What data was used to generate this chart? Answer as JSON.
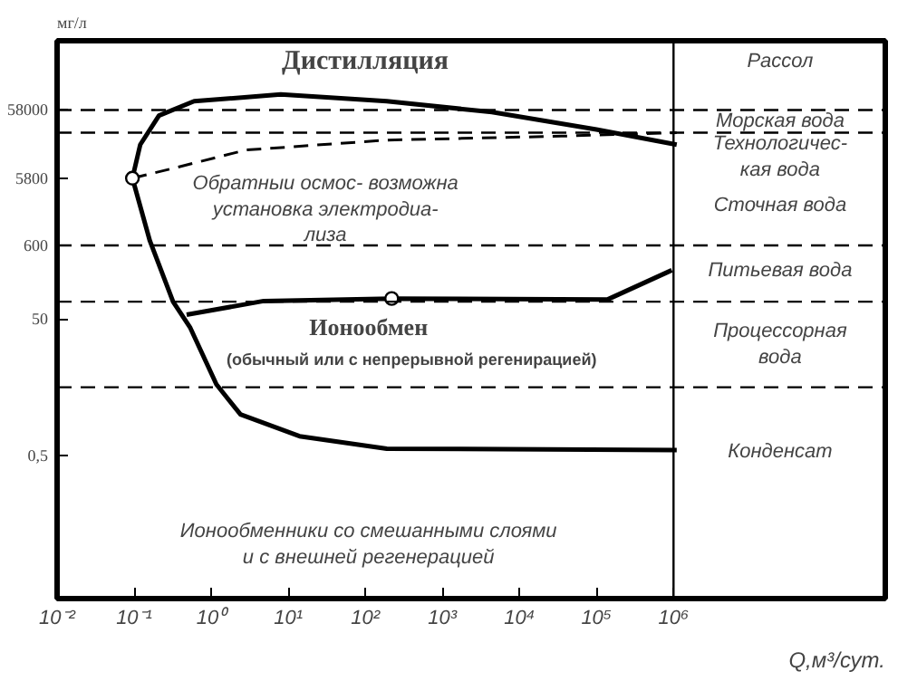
{
  "chart_data": {
    "type": "line",
    "ylabel": "мг/л",
    "xlabel": "Q,м³/сут.",
    "log": "xy",
    "grid": false,
    "xlim": [
      0.01,
      560000000
    ],
    "ylim": [
      0.004,
      600000
    ],
    "xticks": [
      {
        "value": 0.01,
        "label": "10⁻²"
      },
      {
        "value": 0.1,
        "label": "10⁻¹"
      },
      {
        "value": 1,
        "label": "10⁰"
      },
      {
        "value": 10,
        "label": "10¹"
      },
      {
        "value": 100,
        "label": "10²"
      },
      {
        "value": 1000,
        "label": "10³"
      },
      {
        "value": 10000,
        "label": "10⁴"
      },
      {
        "value": 100000,
        "label": "10⁵"
      },
      {
        "value": 1000000,
        "label": "10⁶"
      }
    ],
    "yticks": [
      58000,
      5800,
      600,
      50,
      {
        "value": 0.5,
        "label": "0,5"
      }
    ],
    "series": [
      {
        "color": "#000000",
        "line_style": "solid",
        "x": [
          0.095,
          0.12,
          0.21,
          0.6,
          8,
          190,
          4400,
          100000,
          1100000
        ],
        "values": [
          5800,
          18000,
          48000,
          78000,
          98000,
          78000,
          54000,
          30000,
          18000
        ]
      },
      {
        "color": "#000000",
        "line_style": "dashed",
        "x": [
          0.095,
          0.35,
          2.8,
          190,
          35000,
          1100000
        ],
        "values": [
          5800,
          8300,
          15000,
          21000,
          24000,
          27000
        ]
      },
      {
        "color": "#000000",
        "line_style": "solid",
        "x": [
          0.095,
          0.16,
          0.32,
          0.53,
          1.17,
          2.4,
          14,
          190,
          1100000
        ],
        "values": [
          5800,
          700,
          90,
          38,
          5.5,
          2.0,
          0.96,
          0.63,
          0.6
        ]
      },
      {
        "color": "#000000",
        "line_style": "solid",
        "x": [
          0.48,
          4.8,
          220,
          140000,
          950000
        ],
        "values": [
          58,
          92,
          100,
          97,
          260
        ]
      },
      {
        "type": "scatter",
        "color": "#000000",
        "marker": "circle",
        "x": [
          0.095,
          220
        ],
        "values": [
          5800,
          100
        ]
      }
    ],
    "ref_lines": [
      {
        "axis": "x",
        "value": 1000000,
        "line_style": "solid"
      },
      {
        "axis": "y",
        "value": 58000,
        "line_style": "dashed"
      },
      {
        "axis": "y",
        "value": 27000,
        "line_style": "dashed"
      },
      {
        "axis": "y",
        "value": 600,
        "line_style": "dashed"
      },
      {
        "axis": "y",
        "value": 90,
        "line_style": "dashed"
      },
      {
        "axis": "y",
        "value": 5,
        "line_style": "dashed"
      }
    ],
    "annotations": [
      "Дистилляция",
      "Обратныи осмос- возможна\nустановка электродиа-\nлиза",
      "Ионообмен",
      "(обычный или с непрерывной регенирацией)",
      "Ионообменники со смешанными слоями\nи с внешней регенерацией",
      "Рассол",
      "Морская вода",
      "Технологичес-\nкая вода",
      "Сточная вода",
      "Питьевая вода",
      "Процессорная\nвода",
      "Конденсат"
    ]
  }
}
